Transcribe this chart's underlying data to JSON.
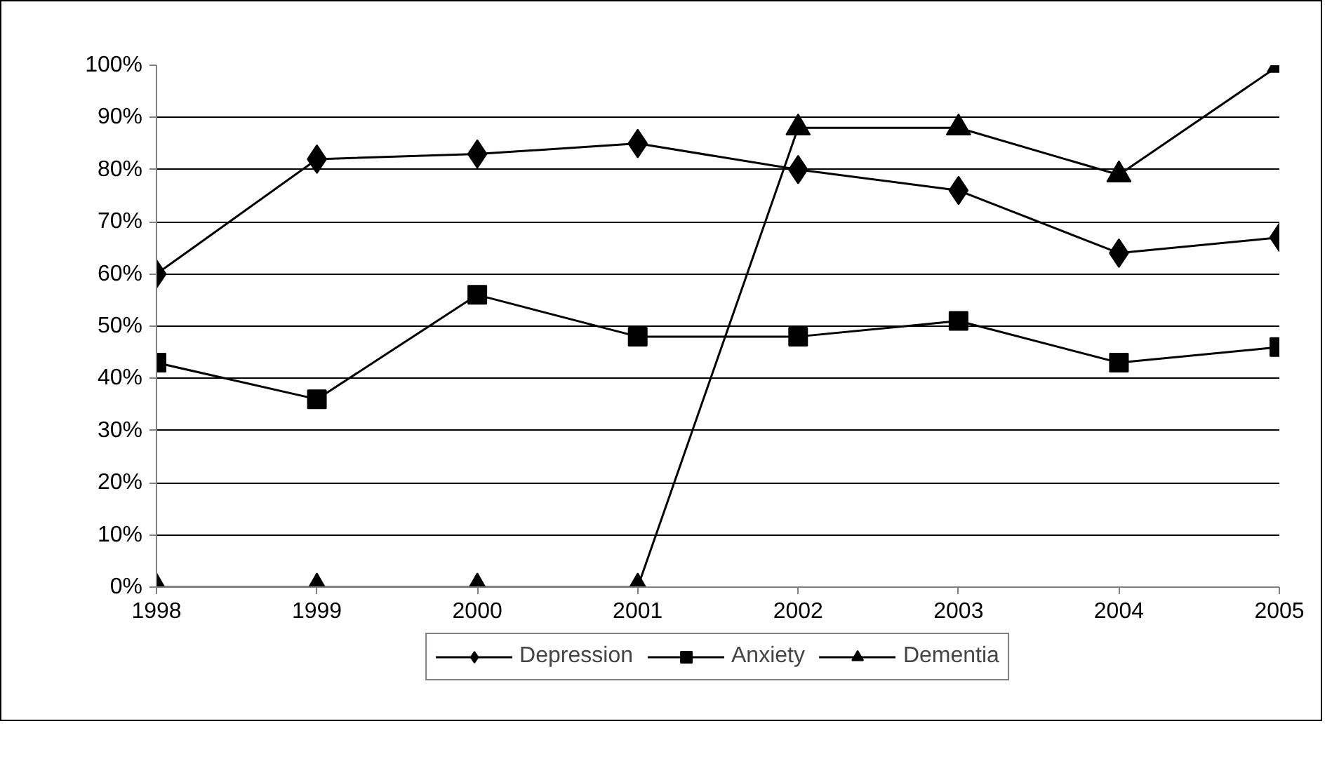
{
  "chart_data": {
    "type": "line",
    "categories": [
      "1998",
      "1999",
      "2000",
      "2001",
      "2002",
      "2003",
      "2004",
      "2005"
    ],
    "series": [
      {
        "name": "Depression",
        "color": "#000000",
        "marker": "diamond",
        "values": [
          60,
          82,
          83,
          85,
          80,
          76,
          64,
          67
        ]
      },
      {
        "name": "Anxiety",
        "color": "#000000",
        "marker": "square",
        "values": [
          43,
          36,
          56,
          48,
          48,
          51,
          43,
          46
        ]
      },
      {
        "name": "Dementia",
        "color": "#000000",
        "marker": "triangle",
        "values": [
          0,
          0,
          0,
          0,
          88,
          88,
          79,
          100
        ]
      }
    ],
    "ylim": [
      0,
      100
    ],
    "yticks": [
      {
        "value": 0,
        "label": "0%"
      },
      {
        "value": 10,
        "label": "10%"
      },
      {
        "value": 20,
        "label": "20%"
      },
      {
        "value": 30,
        "label": "30%"
      },
      {
        "value": 40,
        "label": "40%"
      },
      {
        "value": 50,
        "label": "50%"
      },
      {
        "value": 60,
        "label": "60%"
      },
      {
        "value": 70,
        "label": "70%"
      },
      {
        "value": 80,
        "label": "80%"
      },
      {
        "value": 90,
        "label": "90%"
      },
      {
        "value": 100,
        "label": "100%"
      }
    ],
    "grid": "y",
    "legend": "bottom",
    "line_style": "solid"
  }
}
